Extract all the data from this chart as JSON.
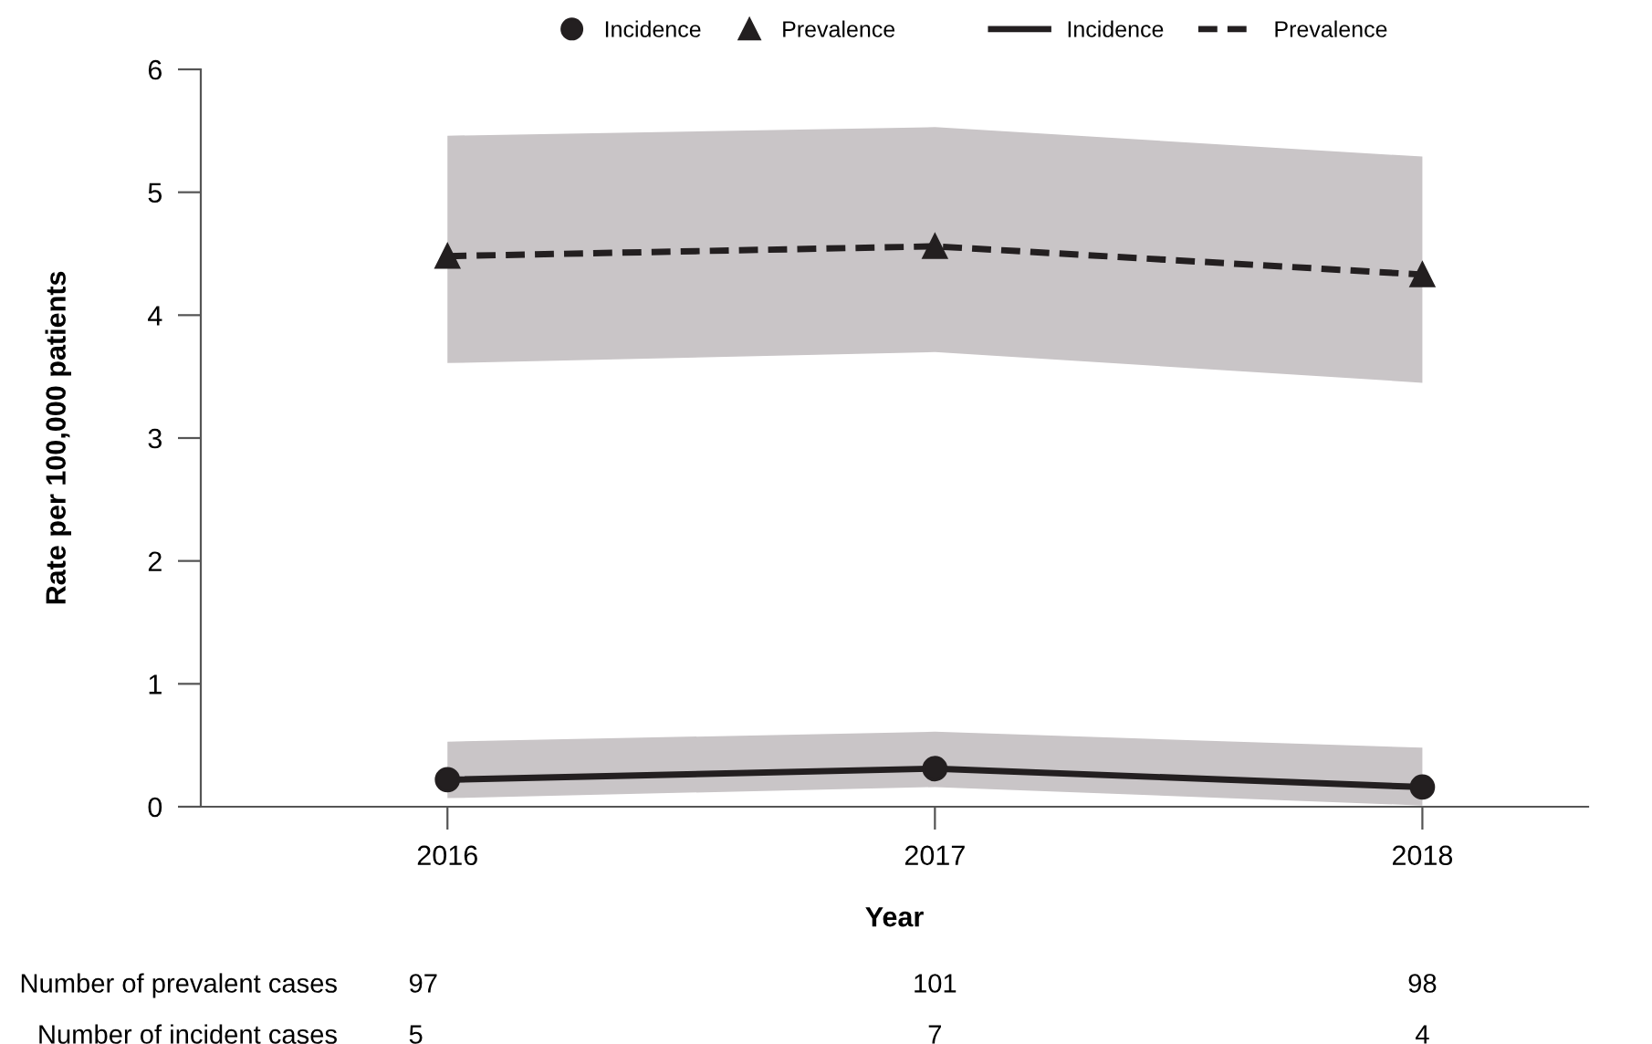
{
  "chart_data": {
    "type": "line",
    "xlabel": "Year",
    "ylabel": "Rate per 100,000 patients",
    "categories": [
      "2016",
      "2017",
      "2018"
    ],
    "series": [
      {
        "name": "Incidence",
        "color": "#231f20",
        "values": [
          0.22,
          0.31,
          0.16
        ],
        "lower": [
          0.07,
          0.16,
          0.01
        ],
        "upper": [
          0.53,
          0.61,
          0.48
        ],
        "marker": "circle",
        "line_style": "solid"
      },
      {
        "name": "Prevalence",
        "color": "#231f20",
        "values": [
          4.48,
          4.56,
          4.33
        ],
        "lower": [
          3.61,
          3.7,
          3.45
        ],
        "upper": [
          5.46,
          5.53,
          5.29
        ],
        "marker": "triangle",
        "line_style": "dashed"
      }
    ],
    "ylim": [
      0,
      6
    ],
    "yticks": [
      0,
      1,
      2,
      3,
      4,
      5,
      6
    ],
    "grid": false,
    "legend": "top",
    "annotations": [
      "Number of prevalent cases",
      "97",
      "101",
      "98",
      "Number of incident cases",
      "5",
      "7",
      "4"
    ]
  }
}
